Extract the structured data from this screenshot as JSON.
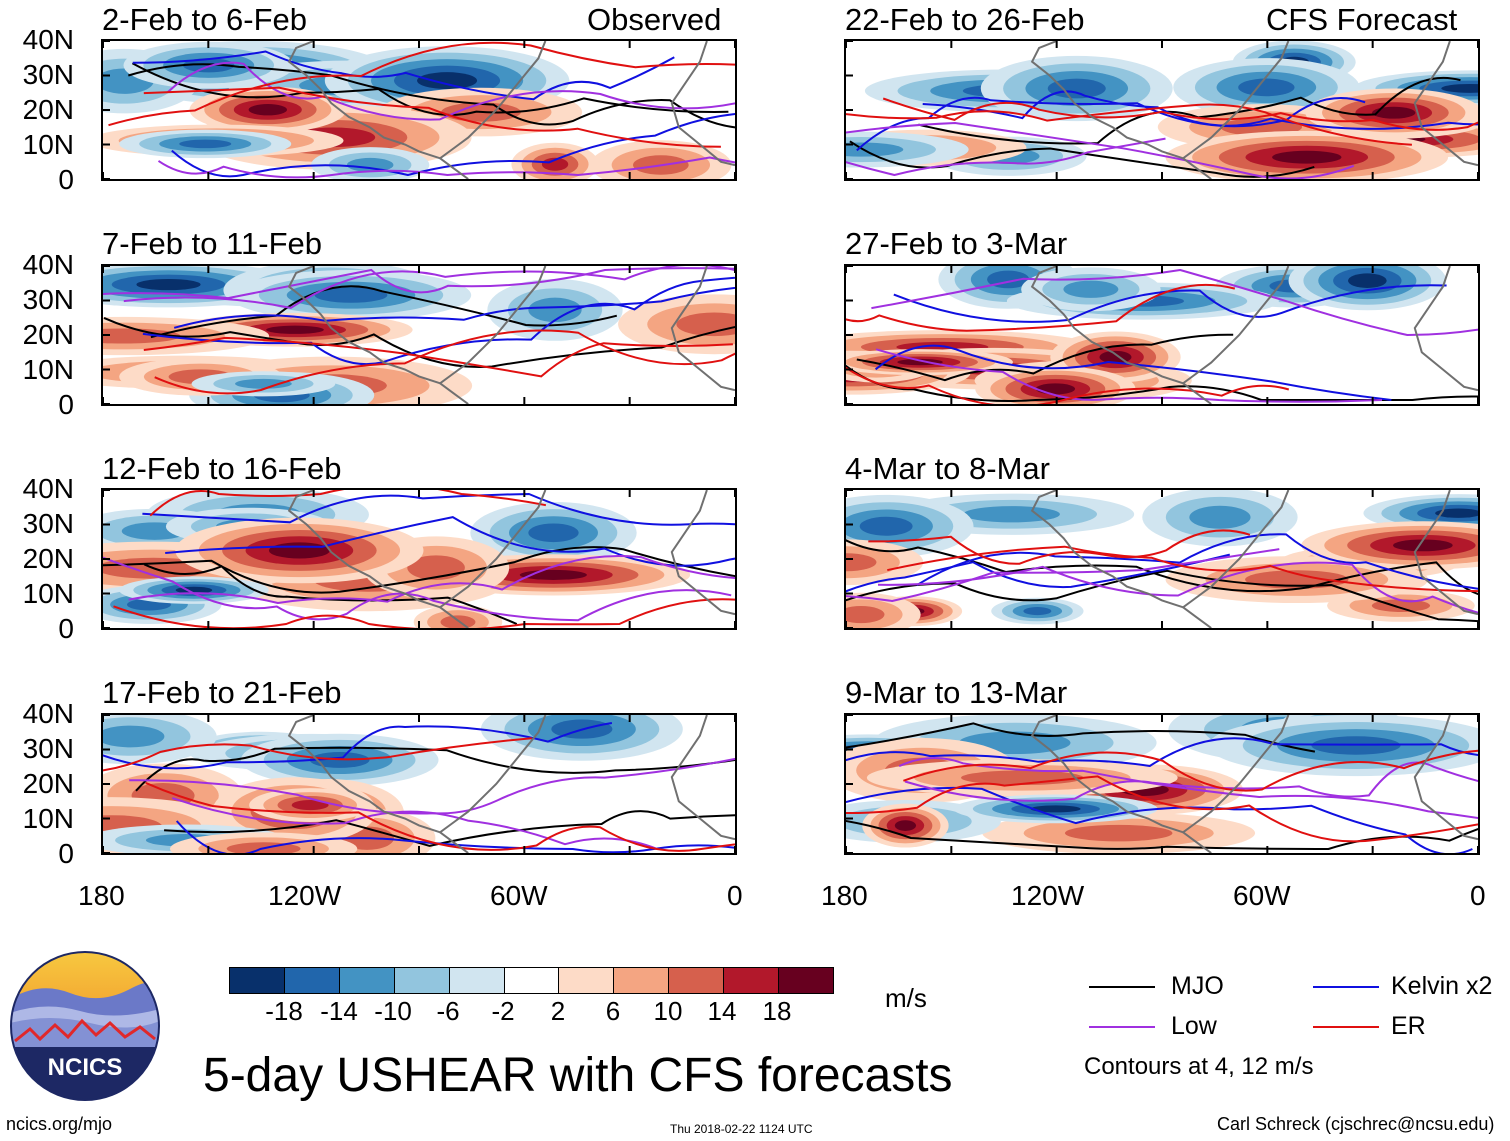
{
  "variable": "USHEAR",
  "units": "m/s",
  "main_title": "5-day USHEAR with CFS forecasts",
  "logo": {
    "text": "NCICS"
  },
  "labels": {
    "observed": "Observed",
    "forecast": "CFS Forecast"
  },
  "y_axis_labels": [
    "40N",
    "30N",
    "20N",
    "10N",
    "0"
  ],
  "x_axis_labels": [
    "180",
    "120W",
    "60W",
    "0"
  ],
  "panels": [
    {
      "period": "2-Feb to 6-Feb",
      "type": "observed",
      "seed": 3
    },
    {
      "period": "7-Feb to 11-Feb",
      "type": "observed",
      "seed": 11
    },
    {
      "period": "12-Feb to 16-Feb",
      "type": "observed",
      "seed": 23
    },
    {
      "period": "17-Feb to 21-Feb",
      "type": "observed",
      "seed": 37
    },
    {
      "period": "22-Feb to 26-Feb",
      "type": "forecast",
      "seed": 41
    },
    {
      "period": "27-Feb to 3-Mar",
      "type": "forecast",
      "seed": 53
    },
    {
      "period": "4-Mar to 8-Mar",
      "type": "forecast",
      "seed": 67
    },
    {
      "period": "9-Mar to 13-Mar",
      "type": "forecast",
      "seed": 79
    }
  ],
  "colorbar": {
    "tick_labels": [
      "-18",
      "-14",
      "-10",
      "-6",
      "-2",
      "2",
      "6",
      "10",
      "14",
      "18"
    ],
    "colors": [
      "#08306b",
      "#2166ac",
      "#4393c3",
      "#92c5de",
      "#d1e5f0",
      "#ffffff",
      "#fddbc7",
      "#f4a582",
      "#d6604d",
      "#b2182b",
      "#67001f"
    ]
  },
  "legend": {
    "items": [
      {
        "label": "MJO",
        "color": "#000000"
      },
      {
        "label": "Kelvin x2",
        "color": "#1010e0"
      },
      {
        "label": "Low",
        "color": "#a030e0"
      },
      {
        "label": "ER",
        "color": "#e01010"
      }
    ],
    "note": "Contours at 4, 12 m/s"
  },
  "footer": {
    "left": "ncics.org/mjo",
    "center": "Thu 2018-02-22 1124 UTC",
    "right": "Carl Schreck (cjschrec@ncsu.edu)"
  }
}
